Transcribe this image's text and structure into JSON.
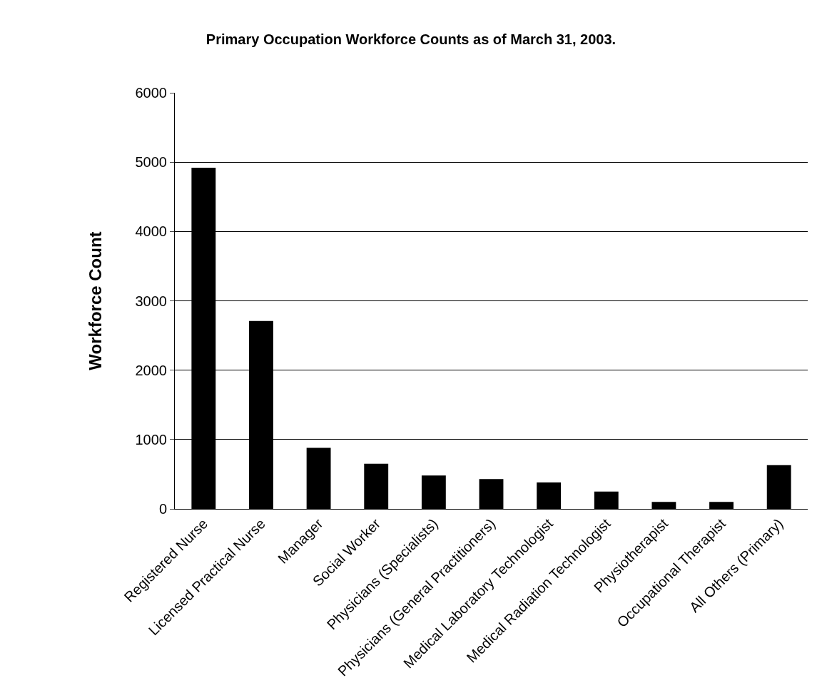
{
  "chart_data": {
    "type": "bar",
    "title": "Primary Occupation Workforce Counts as of March 31, 2003.",
    "ylabel": "Workforce Count",
    "categories": [
      "Registered Nurse",
      "Licensed Practical Nurse",
      "Manager",
      "Social Worker",
      "Physicians (Specialists)",
      "Physicians (General Practitioners)",
      "Medical Laboratory Technologist",
      "Medical Radiation Technologist",
      "Physiotherapist",
      "Occupational Therapist",
      "All Others (Primary)"
    ],
    "values": [
      4920,
      2710,
      880,
      650,
      480,
      430,
      380,
      250,
      100,
      100,
      630
    ],
    "color": "#000000",
    "ylim": [
      0,
      6000
    ],
    "yticks": [
      0,
      1000,
      2000,
      3000,
      4000,
      5000,
      6000
    ],
    "grid": "y"
  }
}
